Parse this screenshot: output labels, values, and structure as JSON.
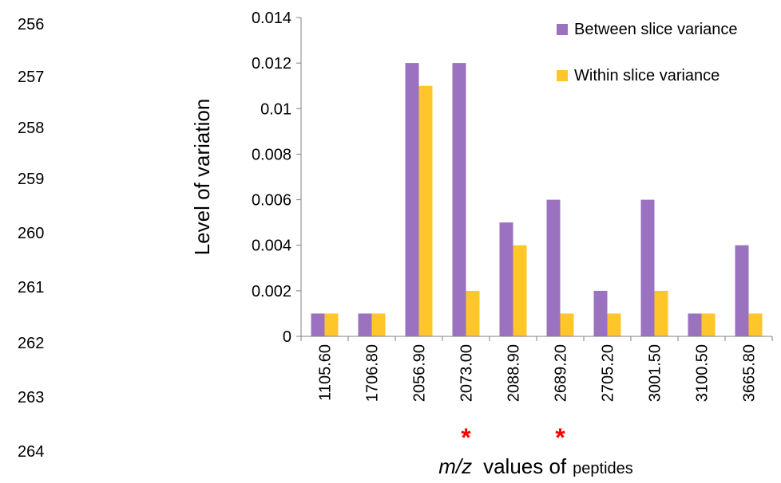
{
  "line_numbers": [
    "256",
    "257",
    "258",
    "259",
    "260",
    "261",
    "262",
    "263",
    "264"
  ],
  "colors": {
    "between": "#9b72c0",
    "within": "#ffc629",
    "axis": "#808080",
    "marker": "#ff0000",
    "text": "#000000"
  },
  "chart_data": {
    "type": "bar",
    "categories": [
      "1105.60",
      "1706.80",
      "2056.90",
      "2073.00",
      "2088.90",
      "2689.20",
      "2705.20",
      "3001.50",
      "3100.50",
      "3665.80"
    ],
    "series": [
      {
        "name": "Between slice variance",
        "values": [
          0.001,
          0.001,
          0.012,
          0.012,
          0.005,
          0.006,
          0.002,
          0.006,
          0.001,
          0.004
        ]
      },
      {
        "name": "Within slice variance",
        "values": [
          0.001,
          0.001,
          0.011,
          0.002,
          0.004,
          0.001,
          0.001,
          0.002,
          0.001,
          0.001
        ]
      }
    ],
    "ylim": [
      0,
      0.014
    ],
    "yticks": [
      "0",
      "0.002",
      "0.004",
      "0.006",
      "0.008",
      "0.01",
      "0.012",
      "0.014"
    ],
    "ylabel": "Level of variation",
    "xlabel_italic": "m/z",
    "xlabel_mid": "values of",
    "xlabel_end": "peptides",
    "marker_symbol": "*",
    "marked_categories": [
      "2073.00",
      "2689.20"
    ],
    "legend_position": "top-right",
    "grid": false
  }
}
